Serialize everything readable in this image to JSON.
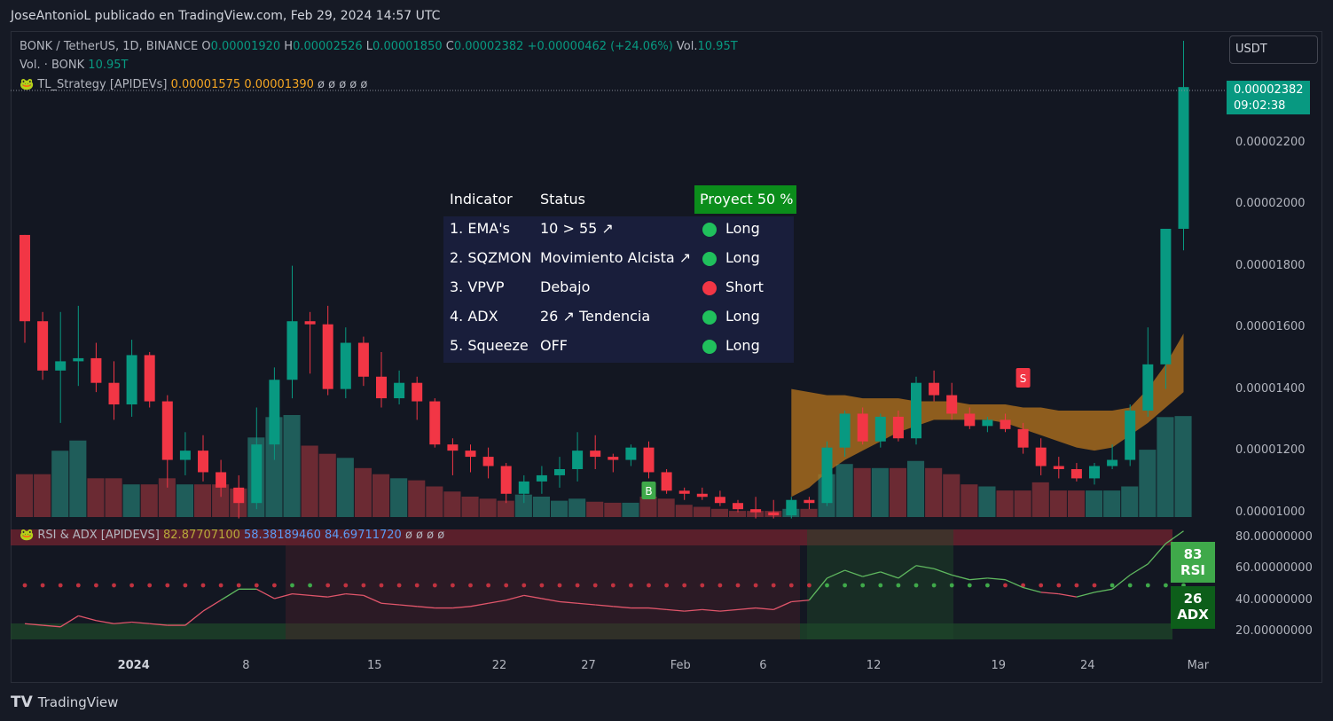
{
  "header": {
    "attribution": "JoseAntonioL publicado en TradingView.com, Feb 29, 2024 14:57 UTC"
  },
  "legend": {
    "symbol": "BONK / TetherUS, 1D, BINANCE",
    "open_label": "O",
    "open": "0.00001920",
    "high_label": "H",
    "high": "0.00002526",
    "low_label": "L",
    "low": "0.00001850",
    "close_label": "C",
    "close": "0.00002382",
    "change": "+0.00000462 (+24.06%)",
    "vol_label": "Vol.",
    "vol": "10.95T",
    "vol_line_label": "Vol. · BONK",
    "vol_line_value": "10.95T",
    "strategy_name": "TL_Strategy [APIDEVs]",
    "strategy_v1": "0.00001575",
    "strategy_v2": "0.00001390",
    "strategy_phis": "ø ø ø ø ø"
  },
  "currency_button": "USDT",
  "price_tag": {
    "price": "0.00002382",
    "countdown": "09:02:38"
  },
  "y_axis": [
    "0.00002200",
    "0.00002000",
    "0.00001800",
    "0.00001600",
    "0.00001400",
    "0.00001200",
    "0.00001000"
  ],
  "x_axis": [
    {
      "label": "2024",
      "bold": true
    },
    {
      "label": "8"
    },
    {
      "label": "15"
    },
    {
      "label": "22"
    },
    {
      "label": "27"
    },
    {
      "label": "Feb"
    },
    {
      "label": "6"
    },
    {
      "label": "12"
    },
    {
      "label": "19"
    },
    {
      "label": "24"
    },
    {
      "label": "Mar"
    }
  ],
  "rsi_panel": {
    "name": "RSI & ADX [APIDEVS]",
    "v1": "82.87707100",
    "v2": "58.38189460",
    "v3": "84.69711720",
    "phis": "ø ø ø ø",
    "y_axis": [
      "80.00000000",
      "60.00000000",
      "40.00000000",
      "20.00000000"
    ],
    "rsi_badge_value": "83",
    "rsi_badge_label": "RSI",
    "adx_badge_value": "26",
    "adx_badge_label": "ADX"
  },
  "indicator_table": {
    "headers": [
      "Indicator",
      "Status"
    ],
    "projection": "Proyect 50 %",
    "rows": [
      {
        "indicator": "1. EMA's",
        "status": "10 > 55 ↗",
        "signal": "Long",
        "color": "#20c05c"
      },
      {
        "indicator": "2. SQZMON",
        "status": "Movimiento Alcista ↗",
        "signal": "Long",
        "color": "#20c05c"
      },
      {
        "indicator": "3. VPVP",
        "status": "Debajo",
        "signal": "Short",
        "color": "#f23645"
      },
      {
        "indicator": "4. ADX",
        "status": "26 ↗ Tendencia",
        "signal": "Long",
        "color": "#20c05c"
      },
      {
        "indicator": "5. Squeeze",
        "status": "OFF",
        "signal": "Long",
        "color": "#20c05c"
      }
    ]
  },
  "markers": {
    "buy": "B",
    "sell": "S"
  },
  "footer": {
    "logo": "TV",
    "brand": "TradingView"
  },
  "chart_data": {
    "type": "candlestick",
    "y_range": [
      9.5e-06,
      2.51e-05
    ],
    "colors": {
      "up": "#089981",
      "down": "#f23645"
    },
    "candles": [
      [
        1.9e-05,
        1.9e-05,
        1.55e-05,
        1.62e-05
      ],
      [
        1.62e-05,
        1.65e-05,
        1.43e-05,
        1.46e-05
      ],
      [
        1.46e-05,
        1.65e-05,
        1.29e-05,
        1.49e-05
      ],
      [
        1.49e-05,
        1.67e-05,
        1.41e-05,
        1.5e-05
      ],
      [
        1.5e-05,
        1.55e-05,
        1.39e-05,
        1.42e-05
      ],
      [
        1.42e-05,
        1.49e-05,
        1.3e-05,
        1.35e-05
      ],
      [
        1.35e-05,
        1.56e-05,
        1.31e-05,
        1.51e-05
      ],
      [
        1.51e-05,
        1.52e-05,
        1.34e-05,
        1.36e-05
      ],
      [
        1.36e-05,
        1.38e-05,
        1.08e-05,
        1.17e-05
      ],
      [
        1.17e-05,
        1.26e-05,
        1.12e-05,
        1.2e-05
      ],
      [
        1.2e-05,
        1.25e-05,
        1.1e-05,
        1.13e-05
      ],
      [
        1.13e-05,
        1.17e-05,
        1.05e-05,
        1.08e-05
      ],
      [
        1.08e-05,
        1.12e-05,
        9.8e-06,
        1.03e-05
      ],
      [
        1.03e-05,
        1.34e-05,
        1.01e-05,
        1.22e-05
      ],
      [
        1.22e-05,
        1.47e-05,
        1.17e-05,
        1.43e-05
      ],
      [
        1.43e-05,
        1.8e-05,
        1.37e-05,
        1.62e-05
      ],
      [
        1.62e-05,
        1.65e-05,
        1.45e-05,
        1.61e-05
      ],
      [
        1.61e-05,
        1.67e-05,
        1.38e-05,
        1.4e-05
      ],
      [
        1.4e-05,
        1.6e-05,
        1.37e-05,
        1.55e-05
      ],
      [
        1.55e-05,
        1.57e-05,
        1.41e-05,
        1.44e-05
      ],
      [
        1.44e-05,
        1.52e-05,
        1.34e-05,
        1.37e-05
      ],
      [
        1.37e-05,
        1.46e-05,
        1.35e-05,
        1.42e-05
      ],
      [
        1.42e-05,
        1.44e-05,
        1.3e-05,
        1.36e-05
      ],
      [
        1.36e-05,
        1.37e-05,
        1.21e-05,
        1.22e-05
      ],
      [
        1.22e-05,
        1.24e-05,
        1.12e-05,
        1.2e-05
      ],
      [
        1.2e-05,
        1.22e-05,
        1.13e-05,
        1.18e-05
      ],
      [
        1.18e-05,
        1.21e-05,
        1.11e-05,
        1.15e-05
      ],
      [
        1.15e-05,
        1.16e-05,
        1.03e-05,
        1.06e-05
      ],
      [
        1.06e-05,
        1.12e-05,
        1.03e-05,
        1.1e-05
      ],
      [
        1.1e-05,
        1.15e-05,
        1.06e-05,
        1.12e-05
      ],
      [
        1.12e-05,
        1.18e-05,
        1.08e-05,
        1.14e-05
      ],
      [
        1.14e-05,
        1.26e-05,
        1.1e-05,
        1.2e-05
      ],
      [
        1.2e-05,
        1.25e-05,
        1.14e-05,
        1.18e-05
      ],
      [
        1.18e-05,
        1.19e-05,
        1.13e-05,
        1.17e-05
      ],
      [
        1.17e-05,
        1.22e-05,
        1.15e-05,
        1.21e-05
      ],
      [
        1.21e-05,
        1.23e-05,
        1.11e-05,
        1.13e-05
      ],
      [
        1.13e-05,
        1.14e-05,
        1.06e-05,
        1.07e-05
      ],
      [
        1.07e-05,
        1.08e-05,
        1.04e-05,
        1.06e-05
      ],
      [
        1.06e-05,
        1.08e-05,
        1.04e-05,
        1.05e-05
      ],
      [
        1.05e-05,
        1.07e-05,
        1.02e-05,
        1.03e-05
      ],
      [
        1.03e-05,
        1.04e-05,
        1e-05,
        1.01e-05
      ],
      [
        1.01e-05,
        1.05e-05,
        9.8e-06,
        1e-05
      ],
      [
        1e-05,
        1.04e-05,
        9.8e-06,
        9.9e-06
      ],
      [
        9.9e-06,
        1.05e-05,
        9.8e-06,
        1.04e-05
      ],
      [
        1.04e-05,
        1.05e-05,
        1.01e-05,
        1.03e-05
      ],
      [
        1.03e-05,
        1.23e-05,
        1.02e-05,
        1.21e-05
      ],
      [
        1.21e-05,
        1.33e-05,
        1.18e-05,
        1.32e-05
      ],
      [
        1.32e-05,
        1.34e-05,
        1.22e-05,
        1.23e-05
      ],
      [
        1.23e-05,
        1.32e-05,
        1.21e-05,
        1.31e-05
      ],
      [
        1.31e-05,
        1.33e-05,
        1.23e-05,
        1.24e-05
      ],
      [
        1.24e-05,
        1.44e-05,
        1.22e-05,
        1.42e-05
      ],
      [
        1.42e-05,
        1.46e-05,
        1.36e-05,
        1.38e-05
      ],
      [
        1.38e-05,
        1.42e-05,
        1.3e-05,
        1.32e-05
      ],
      [
        1.32e-05,
        1.34e-05,
        1.27e-05,
        1.28e-05
      ],
      [
        1.28e-05,
        1.31e-05,
        1.26e-05,
        1.3e-05
      ],
      [
        1.3e-05,
        1.32e-05,
        1.26e-05,
        1.27e-05
      ],
      [
        1.27e-05,
        1.29e-05,
        1.19e-05,
        1.21e-05
      ],
      [
        1.21e-05,
        1.24e-05,
        1.12e-05,
        1.15e-05
      ],
      [
        1.15e-05,
        1.18e-05,
        1.11e-05,
        1.14e-05
      ],
      [
        1.14e-05,
        1.16e-05,
        1.1e-05,
        1.11e-05
      ],
      [
        1.11e-05,
        1.16e-05,
        1.09e-05,
        1.15e-05
      ],
      [
        1.15e-05,
        1.22e-05,
        1.14e-05,
        1.17e-05
      ],
      [
        1.17e-05,
        1.35e-05,
        1.15e-05,
        1.33e-05
      ],
      [
        1.33e-05,
        1.6e-05,
        1.31e-05,
        1.48e-05
      ],
      [
        1.48e-05,
        1.92e-05,
        1.4e-05,
        1.92e-05
      ],
      [
        1.92e-05,
        2.53e-05,
        1.85e-05,
        2.38e-05
      ]
    ],
    "volume": [
      0.42,
      0.42,
      0.65,
      0.75,
      0.38,
      0.38,
      0.32,
      0.32,
      0.38,
      0.32,
      0.32,
      0.32,
      0.28,
      0.78,
      0.98,
      1.0,
      0.7,
      0.62,
      0.58,
      0.48,
      0.42,
      0.38,
      0.36,
      0.3,
      0.25,
      0.2,
      0.18,
      0.16,
      0.22,
      0.2,
      0.16,
      0.18,
      0.15,
      0.14,
      0.14,
      0.2,
      0.18,
      0.12,
      0.1,
      0.08,
      0.06,
      0.06,
      0.06,
      0.08,
      0.08,
      0.42,
      0.52,
      0.48,
      0.48,
      0.48,
      0.55,
      0.48,
      0.42,
      0.32,
      0.3,
      0.26,
      0.26,
      0.34,
      0.26,
      0.26,
      0.26,
      0.26,
      0.3,
      0.66,
      0.98,
      0.99
    ],
    "rsi": [
      25,
      24,
      23,
      30,
      27,
      25,
      26,
      25,
      24,
      24,
      33,
      40,
      47,
      47,
      41,
      44,
      43,
      42,
      44,
      43,
      38,
      37,
      36,
      35,
      35,
      36,
      38,
      40,
      43,
      41,
      39,
      38,
      37,
      36,
      35,
      35,
      34,
      33,
      34,
      33,
      34,
      35,
      34,
      39,
      40,
      54,
      59,
      55,
      58,
      54,
      62,
      60,
      56,
      53,
      54,
      53,
      48,
      45,
      44,
      42,
      45,
      47,
      56,
      63,
      76,
      84
    ],
    "rsi_range": [
      15,
      85
    ]
  }
}
